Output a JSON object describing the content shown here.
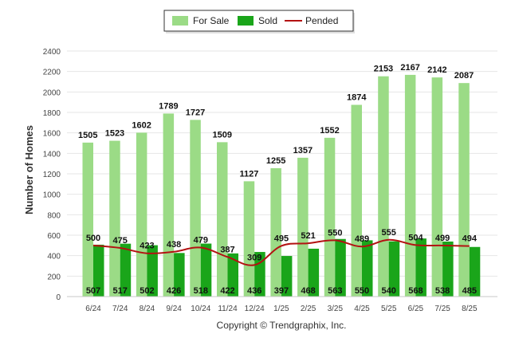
{
  "chart_data": {
    "type": "bar",
    "ylabel": "Number of Homes",
    "xlabel": "",
    "ylim": [
      0,
      2400
    ],
    "yticks": [
      0,
      200,
      400,
      600,
      800,
      1000,
      1200,
      1400,
      1600,
      1800,
      2000,
      2200,
      2400
    ],
    "grid": true,
    "legend_position": "top-center",
    "categories": [
      "6/24",
      "7/24",
      "8/24",
      "9/24",
      "10/24",
      "11/24",
      "12/24",
      "1/25",
      "2/25",
      "3/25",
      "4/25",
      "5/25",
      "6/25",
      "7/25",
      "8/25"
    ],
    "series": [
      {
        "name": "For Sale",
        "kind": "bar",
        "color": "#9bdb86",
        "values": [
          1505,
          1523,
          1602,
          1789,
          1727,
          1509,
          1127,
          1255,
          1357,
          1552,
          1874,
          2153,
          2167,
          2142,
          2087
        ]
      },
      {
        "name": "Sold",
        "kind": "bar",
        "color": "#1aa51a",
        "values": [
          507,
          517,
          502,
          426,
          518,
          422,
          436,
          397,
          468,
          563,
          550,
          540,
          568,
          538,
          485
        ]
      },
      {
        "name": "Pended",
        "kind": "line",
        "color": "#b31212",
        "values": [
          500,
          475,
          423,
          438,
          479,
          387,
          309,
          495,
          521,
          550,
          489,
          555,
          504,
          499,
          494
        ]
      }
    ],
    "footer": "Copyright © Trendgraphix, Inc."
  }
}
